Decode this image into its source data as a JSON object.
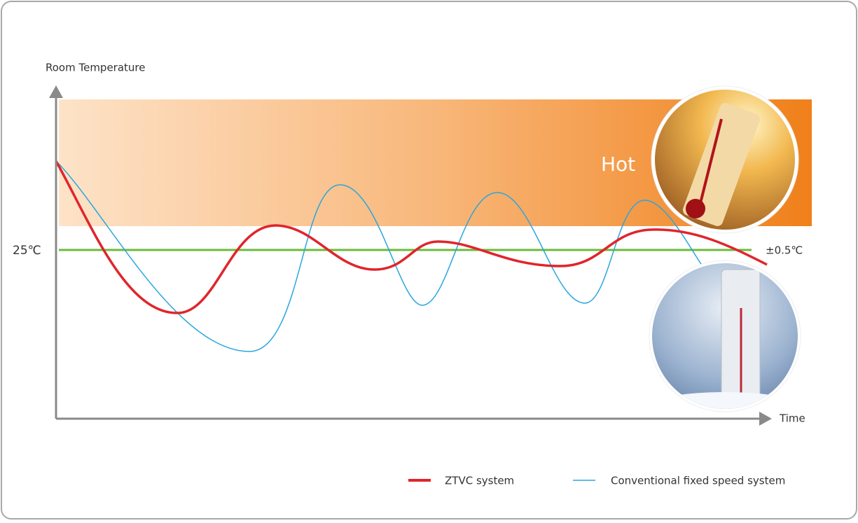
{
  "axes": {
    "y_label": "Room Temperature",
    "x_label": "Time"
  },
  "reference": {
    "label": "25℃",
    "tolerance": "±0.5℃"
  },
  "zones": {
    "hot": "Hot"
  },
  "legend": [
    "ZTVC system",
    "Conventional fixed speed system"
  ]
}
